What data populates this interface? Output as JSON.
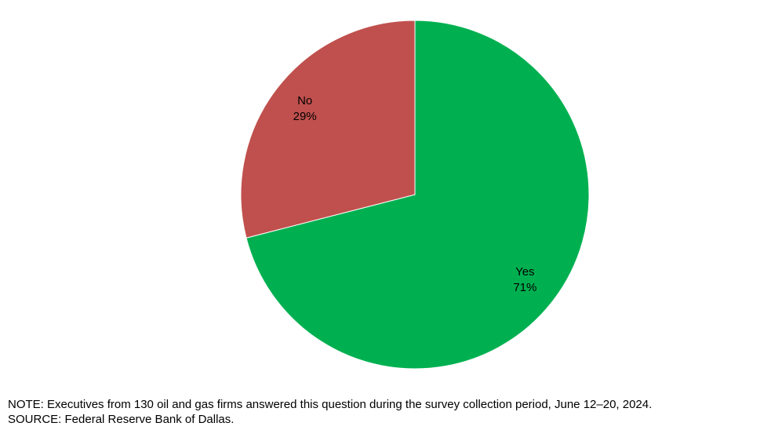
{
  "chart_data": {
    "type": "pie",
    "categories": [
      "Yes",
      "No"
    ],
    "values": [
      71,
      29
    ],
    "value_labels": [
      "71%",
      "29%"
    ],
    "colors": [
      "#00b050",
      "#c0504d"
    ],
    "note": "NOTE:  Executives from 130 oil and gas firms answered this question during the survey collection period, June 12–20, 2024.",
    "source": "SOURCE:  Federal Reserve Bank of Dallas."
  }
}
